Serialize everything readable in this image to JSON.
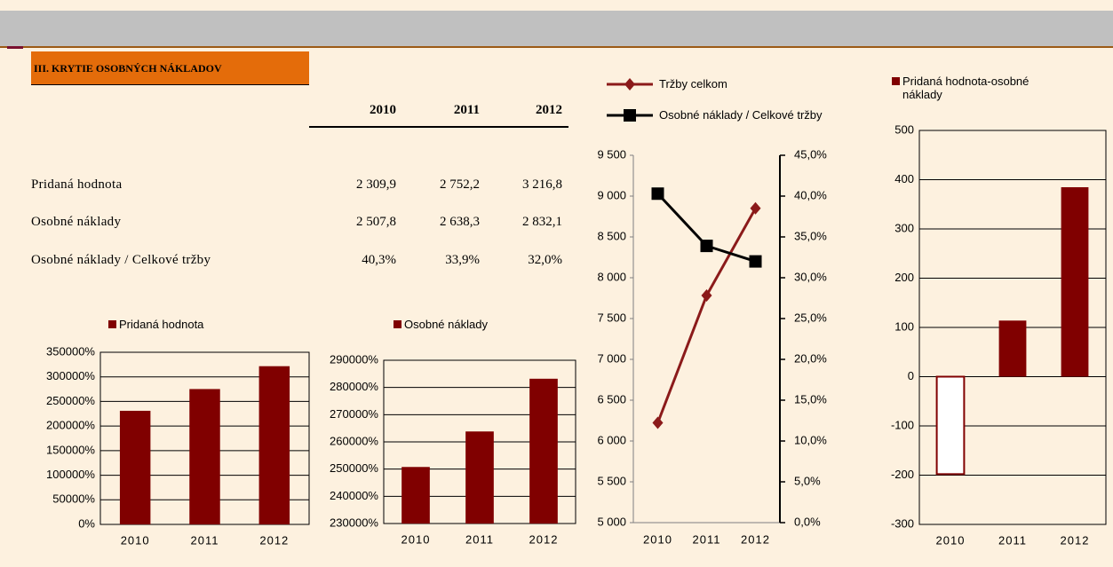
{
  "header": {
    "title": "III. KRYTIE OSOBNÝCH NÁKLADOV"
  },
  "table": {
    "columns": [
      "2010",
      "2011",
      "2012"
    ],
    "rows": [
      [
        "Pridaná hodnota",
        "2 309,9",
        "2 752,2",
        "3 216,8"
      ],
      [
        "Osobné náklady",
        "2 507,8",
        "2 638,3",
        "2 832,1"
      ],
      [
        "Osobné náklady / Celkové tržby",
        "40,3%",
        "33,9%",
        "32,0%"
      ]
    ]
  },
  "chart_data": [
    {
      "type": "bar",
      "categories": [
        "2010",
        "2011",
        "2012"
      ],
      "series": [
        {
          "name": "Pridaná hodnota",
          "color": "#800000",
          "values": [
            230990,
            275220,
            321680
          ]
        }
      ],
      "ylim": [
        0,
        350000
      ],
      "yticks": [
        {
          "value": 0,
          "label": "0%"
        },
        {
          "value": 50000,
          "label": "50000%"
        },
        {
          "value": 100000,
          "label": "100000%"
        },
        {
          "value": 150000,
          "label": "150000%"
        },
        {
          "value": 200000,
          "label": "200000%"
        },
        {
          "value": 250000,
          "label": "250000%"
        },
        {
          "value": 300000,
          "label": "300000%"
        },
        {
          "value": 350000,
          "label": "350000%"
        }
      ],
      "grid": true
    },
    {
      "type": "bar",
      "categories": [
        "2010",
        "2011",
        "2012"
      ],
      "series": [
        {
          "name": "Osobné náklady",
          "color": "#800000",
          "values": [
            250780,
            263830,
            283210
          ]
        }
      ],
      "ylim": [
        230000,
        290000
      ],
      "yticks": [
        {
          "value": 230000,
          "label": "230000%"
        },
        {
          "value": 240000,
          "label": "240000%"
        },
        {
          "value": 250000,
          "label": "250000%"
        },
        {
          "value": 260000,
          "label": "260000%"
        },
        {
          "value": 270000,
          "label": "270000%"
        },
        {
          "value": 280000,
          "label": "280000%"
        },
        {
          "value": 290000,
          "label": "290000%"
        }
      ],
      "grid": true
    },
    {
      "type": "line",
      "categories": [
        "2010",
        "2011",
        "2012"
      ],
      "series": [
        {
          "name": "Tržby celkom",
          "color": "#8b1a1a",
          "marker": "diamond",
          "values": [
            6223,
            7783,
            8850
          ]
        },
        {
          "name": "Osobné náklady / Celkové tržby",
          "color": "#000000",
          "marker": "square",
          "axis": "y2",
          "values": [
            40.3,
            33.9,
            32.0
          ]
        }
      ],
      "ylim": [
        5000,
        9500
      ],
      "yticks": [
        {
          "value": 5000,
          "label": "5 000"
        },
        {
          "value": 5500,
          "label": "5 500"
        },
        {
          "value": 6000,
          "label": "6 000"
        },
        {
          "value": 6500,
          "label": "6 500"
        },
        {
          "value": 7000,
          "label": "7 000"
        },
        {
          "value": 7500,
          "label": "7 500"
        },
        {
          "value": 8000,
          "label": "8 000"
        },
        {
          "value": 8500,
          "label": "8 500"
        },
        {
          "value": 9000,
          "label": "9 000"
        },
        {
          "value": 9500,
          "label": "9 500"
        }
      ],
      "y2lim": [
        0,
        45
      ],
      "y2ticks": [
        {
          "value": 0,
          "label": "0,0%"
        },
        {
          "value": 5,
          "label": "5,0%"
        },
        {
          "value": 10,
          "label": "10,0%"
        },
        {
          "value": 15,
          "label": "15,0%"
        },
        {
          "value": 20,
          "label": "20,0%"
        },
        {
          "value": 25,
          "label": "25,0%"
        },
        {
          "value": 30,
          "label": "30,0%"
        },
        {
          "value": 35,
          "label": "35,0%"
        },
        {
          "value": 40,
          "label": "40,0%"
        },
        {
          "value": 45,
          "label": "45,0%"
        }
      ],
      "grid": false
    },
    {
      "type": "bar",
      "categories": [
        "2010",
        "2011",
        "2012"
      ],
      "series": [
        {
          "name": "Pridaná hodnota-osobné náklady",
          "color": "#800000",
          "values": [
            -197.9,
            113.9,
            384.7
          ]
        }
      ],
      "invert_if_negative": true,
      "ylim": [
        -300,
        500
      ],
      "yticks": [
        -300,
        -200,
        -100,
        0,
        100,
        200,
        300,
        400,
        500
      ],
      "grid": true
    }
  ]
}
